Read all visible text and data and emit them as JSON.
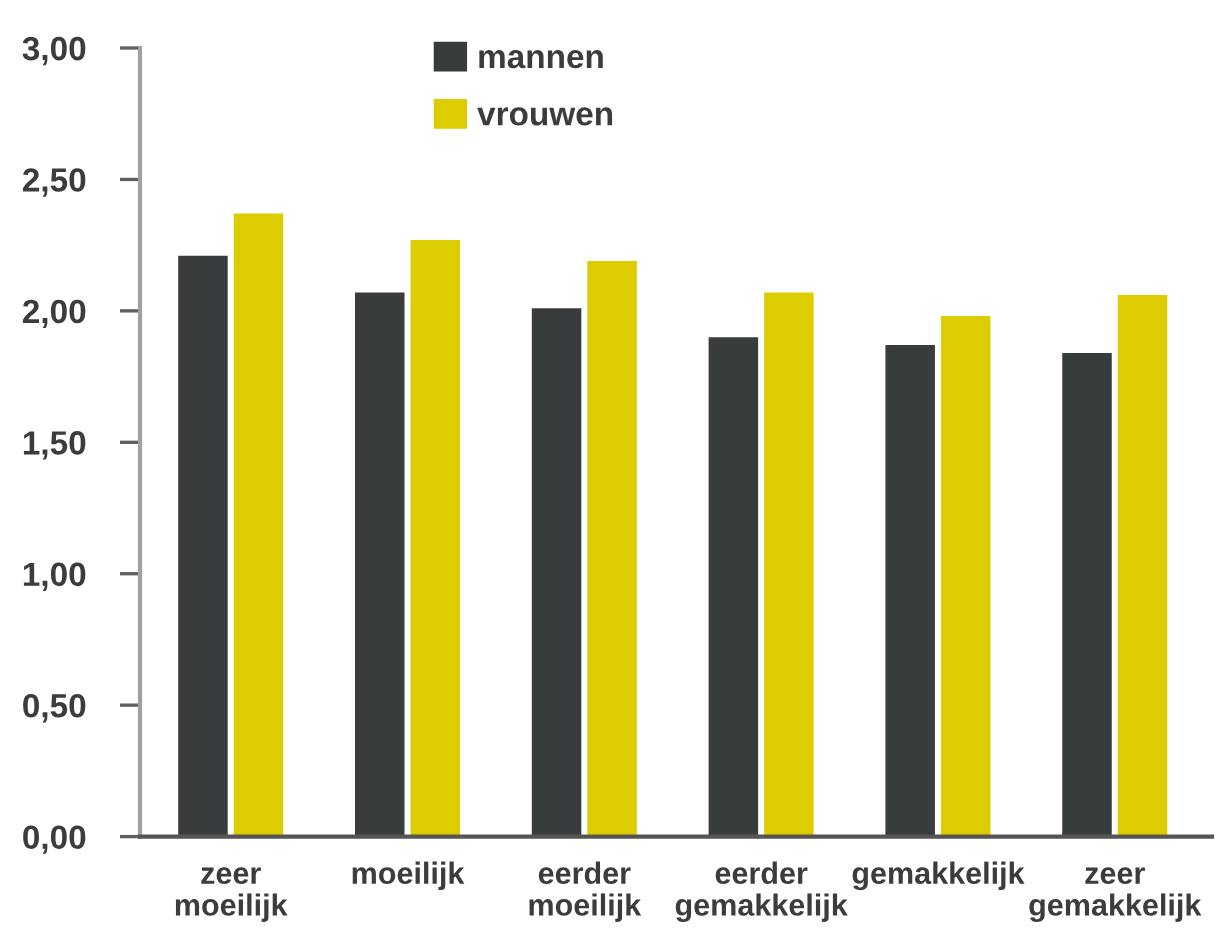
{
  "chart_data": {
    "type": "bar",
    "categories": [
      "zeer\nmoeilijk",
      "moeilijk",
      "eerder\nmoeilijk",
      "eerder\ngemakkelijk",
      "gemakkelijk",
      "zeer\ngemakkelijk"
    ],
    "series": [
      {
        "name": "mannen",
        "color": "#383c3d",
        "values": [
          2.21,
          2.07,
          2.01,
          1.9,
          1.87,
          1.84
        ]
      },
      {
        "name": "vrouwen",
        "color": "#dccc00",
        "values": [
          2.37,
          2.27,
          2.19,
          2.07,
          1.98,
          2.06
        ]
      }
    ],
    "ylim": [
      0,
      3
    ],
    "yticks": [
      {
        "value": 0,
        "label": "0,00"
      },
      {
        "value": 0.5,
        "label": "0,50"
      },
      {
        "value": 1,
        "label": "1,00"
      },
      {
        "value": 1.5,
        "label": "1,50"
      },
      {
        "value": 2,
        "label": "2,00"
      },
      {
        "value": 2.5,
        "label": "2,50"
      },
      {
        "value": 3,
        "label": "3,00"
      }
    ],
    "legend": "top"
  }
}
